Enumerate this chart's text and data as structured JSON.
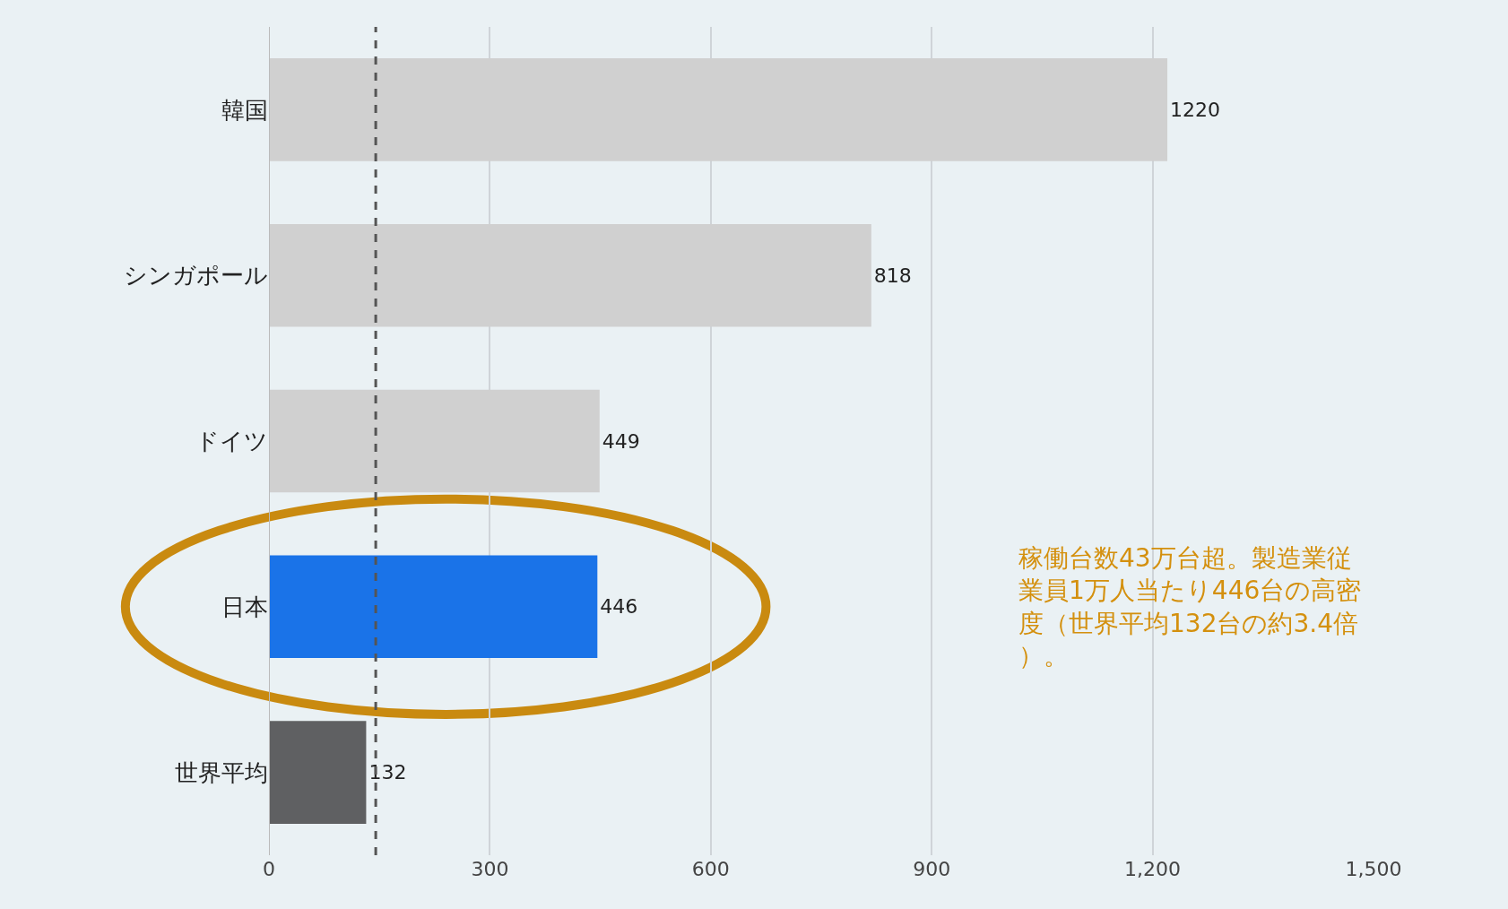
{
  "chart_data": {
    "type": "bar",
    "orientation": "horizontal",
    "categories": [
      "韓国",
      "シンガポール",
      "ドイツ",
      "日本",
      "世界平均"
    ],
    "values": [
      1220,
      818,
      449,
      446,
      132
    ],
    "colors": [
      "#d0d0d0",
      "#d0d0d0",
      "#d0d0d0",
      "#1a73e8",
      "#5f6062"
    ],
    "data_labels": true,
    "xlim": [
      0,
      1500
    ],
    "xticks": [
      0,
      300,
      600,
      900,
      {
        "value": 1200,
        "label": "1,200"
      },
      {
        "value": 1500,
        "label": "1,500"
      }
    ],
    "grid": "x",
    "ref_lines": [
      {
        "axis": "x",
        "value": 145,
        "color": "#555555",
        "line_style": "dashed"
      }
    ],
    "annotations": [
      "稼働台数43万台超。製造業従業員1万人当たり446台の高密度（世界平均132台の約3.4倍）。"
    ]
  }
}
